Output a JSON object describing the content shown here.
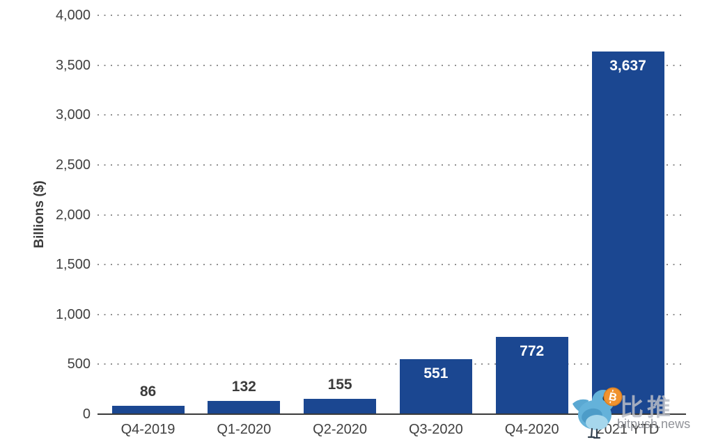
{
  "chart_data": {
    "type": "bar",
    "title": "",
    "categories": [
      "Q4-2019",
      "Q1-2020",
      "Q2-2020",
      "Q3-2020",
      "Q4-2020",
      "2021 YTD"
    ],
    "values": [
      86,
      132,
      155,
      551,
      772,
      3637
    ],
    "value_labels": [
      "86",
      "132",
      "155",
      "551",
      "772",
      "3,637"
    ],
    "value_label_placement": [
      "outside",
      "outside",
      "outside",
      "inside",
      "inside",
      "inside"
    ],
    "xlabel": "",
    "ylabel": "Billions ($)",
    "ylim": [
      0,
      4000
    ],
    "yticks": [
      0,
      500,
      1000,
      1500,
      2000,
      2500,
      3000,
      3500,
      4000
    ],
    "ytick_labels": [
      "0",
      "500",
      "1,000",
      "1,500",
      "2,000",
      "2,500",
      "3,000",
      "3,500",
      "4,000"
    ],
    "grid": "horizontal-dotted",
    "legend": false,
    "bar_color": "#1b4791",
    "label_color_outside": "#3b3b3b",
    "label_color_inside": "#ffffff",
    "grid_dot_color": "#8f8f8f",
    "axis_line_color": "#3a3a3a"
  },
  "watermark": {
    "brand_cn": "比推",
    "brand_domain": "bitpush.news",
    "bird_color": "#64b2da",
    "coin_color": "#f0922f",
    "coin_symbol": "B"
  }
}
